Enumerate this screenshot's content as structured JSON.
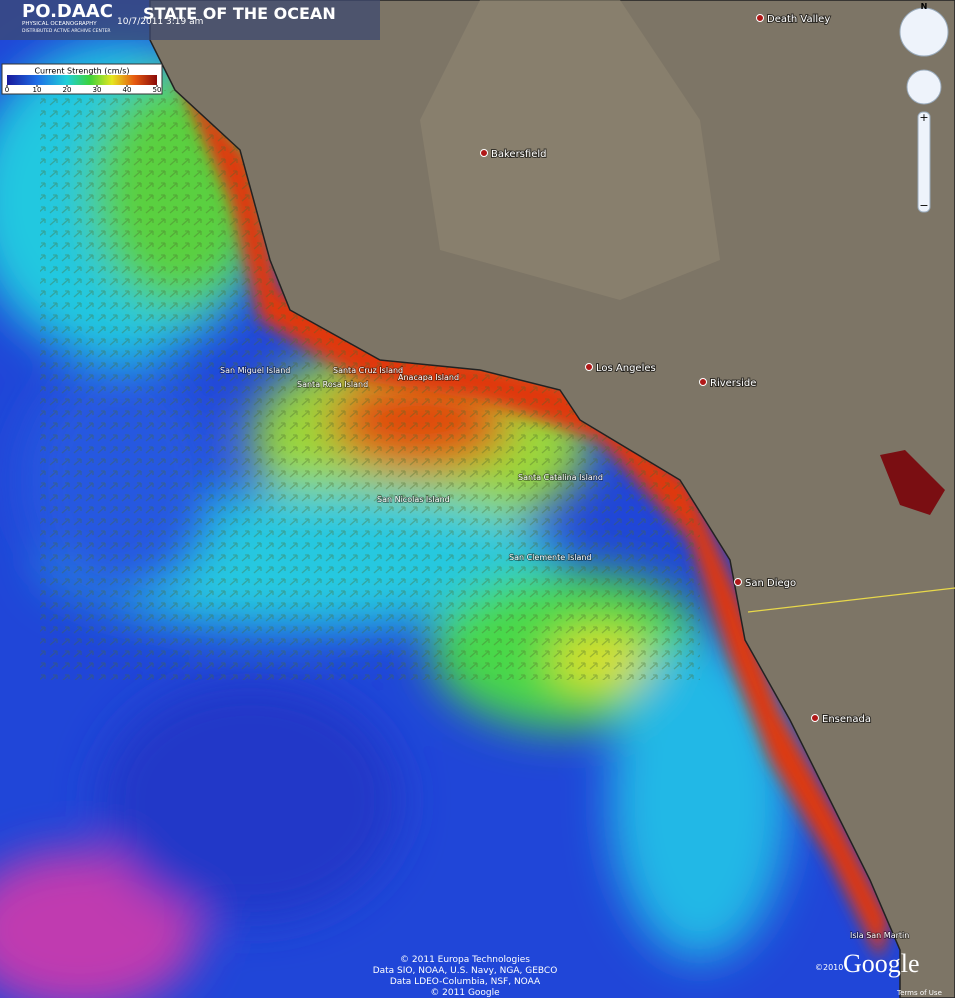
{
  "header": {
    "logo": "PO.DAAC",
    "logo_sub1": "PHYSICAL OCEANOGRAPHY",
    "logo_sub2": "DISTRIBUTED ACTIVE ARCHIVE CENTER",
    "timestamp": "10/7/2011  3:19 am",
    "title": "STATE OF THE OCEAN"
  },
  "legend": {
    "title": "Current Strength (cm/s)",
    "ticks": [
      0,
      10,
      20,
      30,
      40,
      50
    ]
  },
  "places": [
    "Death Valley",
    "Bakersfield",
    "Los Angeles",
    "Riverside",
    "San Diego",
    "Ensenada"
  ],
  "islands": [
    "San Miguel Island",
    "Santa Cruz Island",
    "Santa Rosa Island",
    "Anacapa Island",
    "Santa Catalina Island",
    "San Nicolas Island",
    "San Clemente Island",
    "Isla San Martin"
  ],
  "navigation": {
    "north": "N",
    "zoom_in": "+",
    "zoom_out": "−"
  },
  "attribution": {
    "lines": [
      "© 2011 Europa Technologies",
      "Data SIO, NOAA, U.S. Navy, NGA, GEBCO",
      "Data LDEO-Columbia, NSF, NOAA",
      "© 2011 Google"
    ],
    "year": "©2010",
    "brand": "Google",
    "terms": "Terms of Use"
  }
}
